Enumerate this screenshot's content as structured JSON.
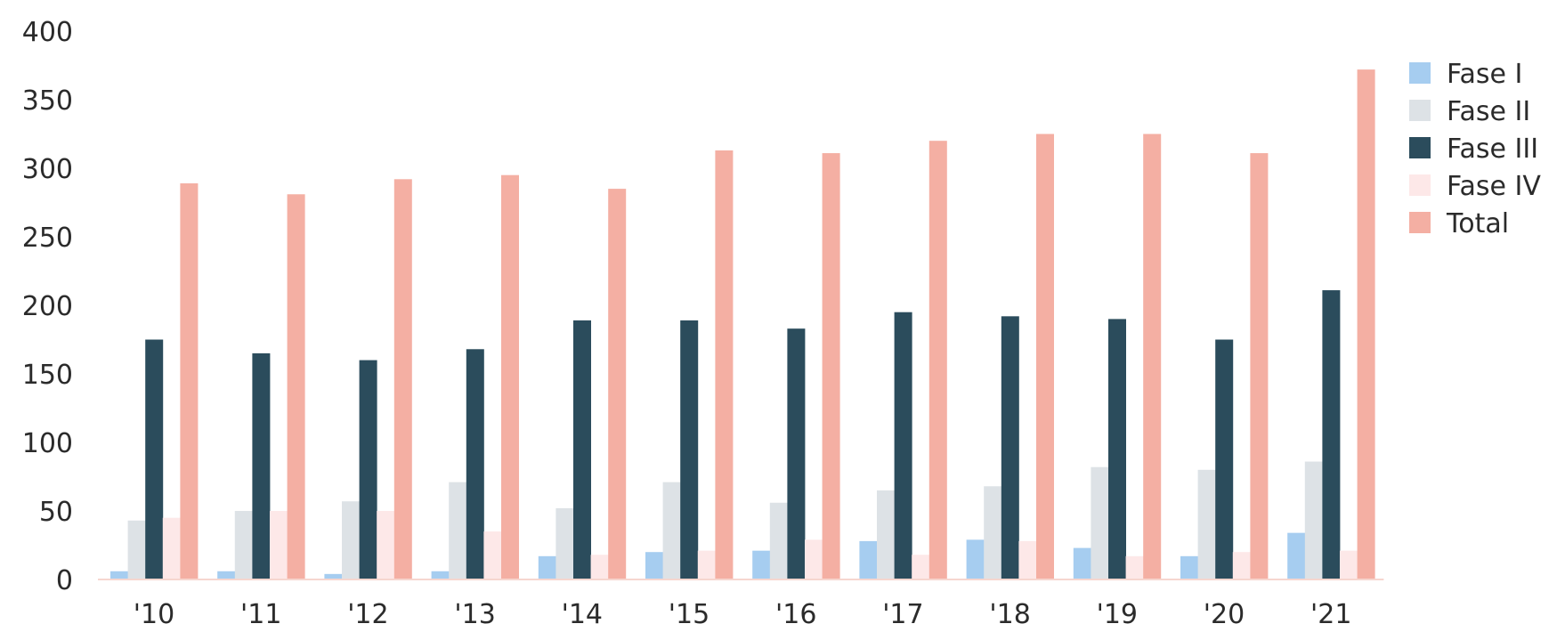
{
  "chart_data": {
    "type": "bar",
    "title": "",
    "xlabel": "",
    "ylabel": "",
    "categories": [
      "'10",
      "'11",
      "'12",
      "'13",
      "'14",
      "'15",
      "'16",
      "'17",
      "'18",
      "'19",
      "'20",
      "'21"
    ],
    "ylim": [
      0,
      400
    ],
    "yticks": [
      "0",
      "50",
      "100",
      "150",
      "200",
      "250",
      "300",
      "350",
      "400"
    ],
    "grid": false,
    "legend_position": "right",
    "series": [
      {
        "name": "Fase I",
        "color": "#a6cdf0",
        "values": [
          6,
          6,
          4,
          6,
          17,
          20,
          21,
          28,
          29,
          23,
          17,
          34
        ]
      },
      {
        "name": "Fase II",
        "color": "#dde2e6",
        "values": [
          43,
          50,
          57,
          71,
          52,
          71,
          56,
          65,
          68,
          82,
          80,
          86
        ]
      },
      {
        "name": "Fase III",
        "color": "#2b4c5c",
        "values": [
          175,
          165,
          160,
          168,
          189,
          189,
          183,
          195,
          192,
          190,
          175,
          211
        ]
      },
      {
        "name": "Fase IV",
        "color": "#fde8e8",
        "values": [
          45,
          50,
          50,
          35,
          18,
          21,
          29,
          18,
          28,
          17,
          20,
          21
        ]
      },
      {
        "name": "Total",
        "color": "#f4afa3",
        "values": [
          289,
          281,
          292,
          295,
          285,
          313,
          311,
          320,
          325,
          325,
          311,
          372
        ]
      }
    ]
  }
}
